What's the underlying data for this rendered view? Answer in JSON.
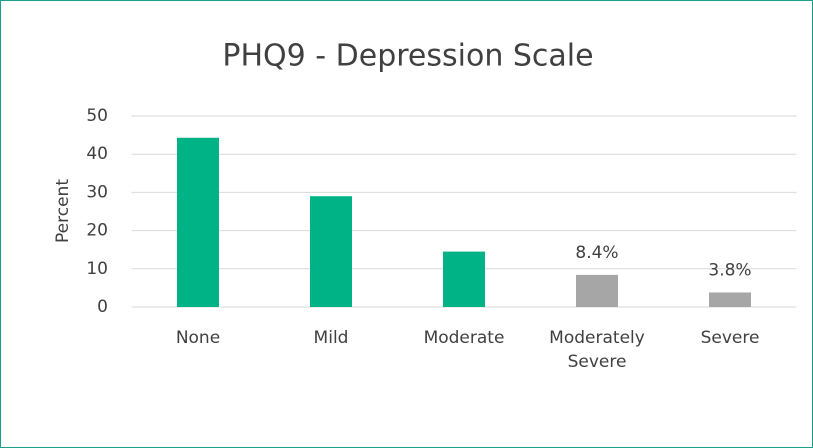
{
  "chart_data": {
    "type": "bar",
    "title": "PHQ9 - Depression Scale",
    "y_label": "Percent",
    "categories": [
      "None",
      "Mild",
      "Moderate",
      "Moderately Severe",
      "Severe"
    ],
    "values": [
      44.3,
      29,
      14.5,
      8.4,
      3.8
    ],
    "value_labels": [
      null,
      null,
      null,
      "8.4%",
      "3.8%"
    ],
    "colors": [
      "#00b386",
      "#00b386",
      "#00b386",
      "#a6a6a6",
      "#a6a6a6"
    ],
    "ylim": [
      0,
      50
    ],
    "yticks": [
      0,
      10,
      20,
      30,
      40,
      50
    ],
    "grid": true
  }
}
